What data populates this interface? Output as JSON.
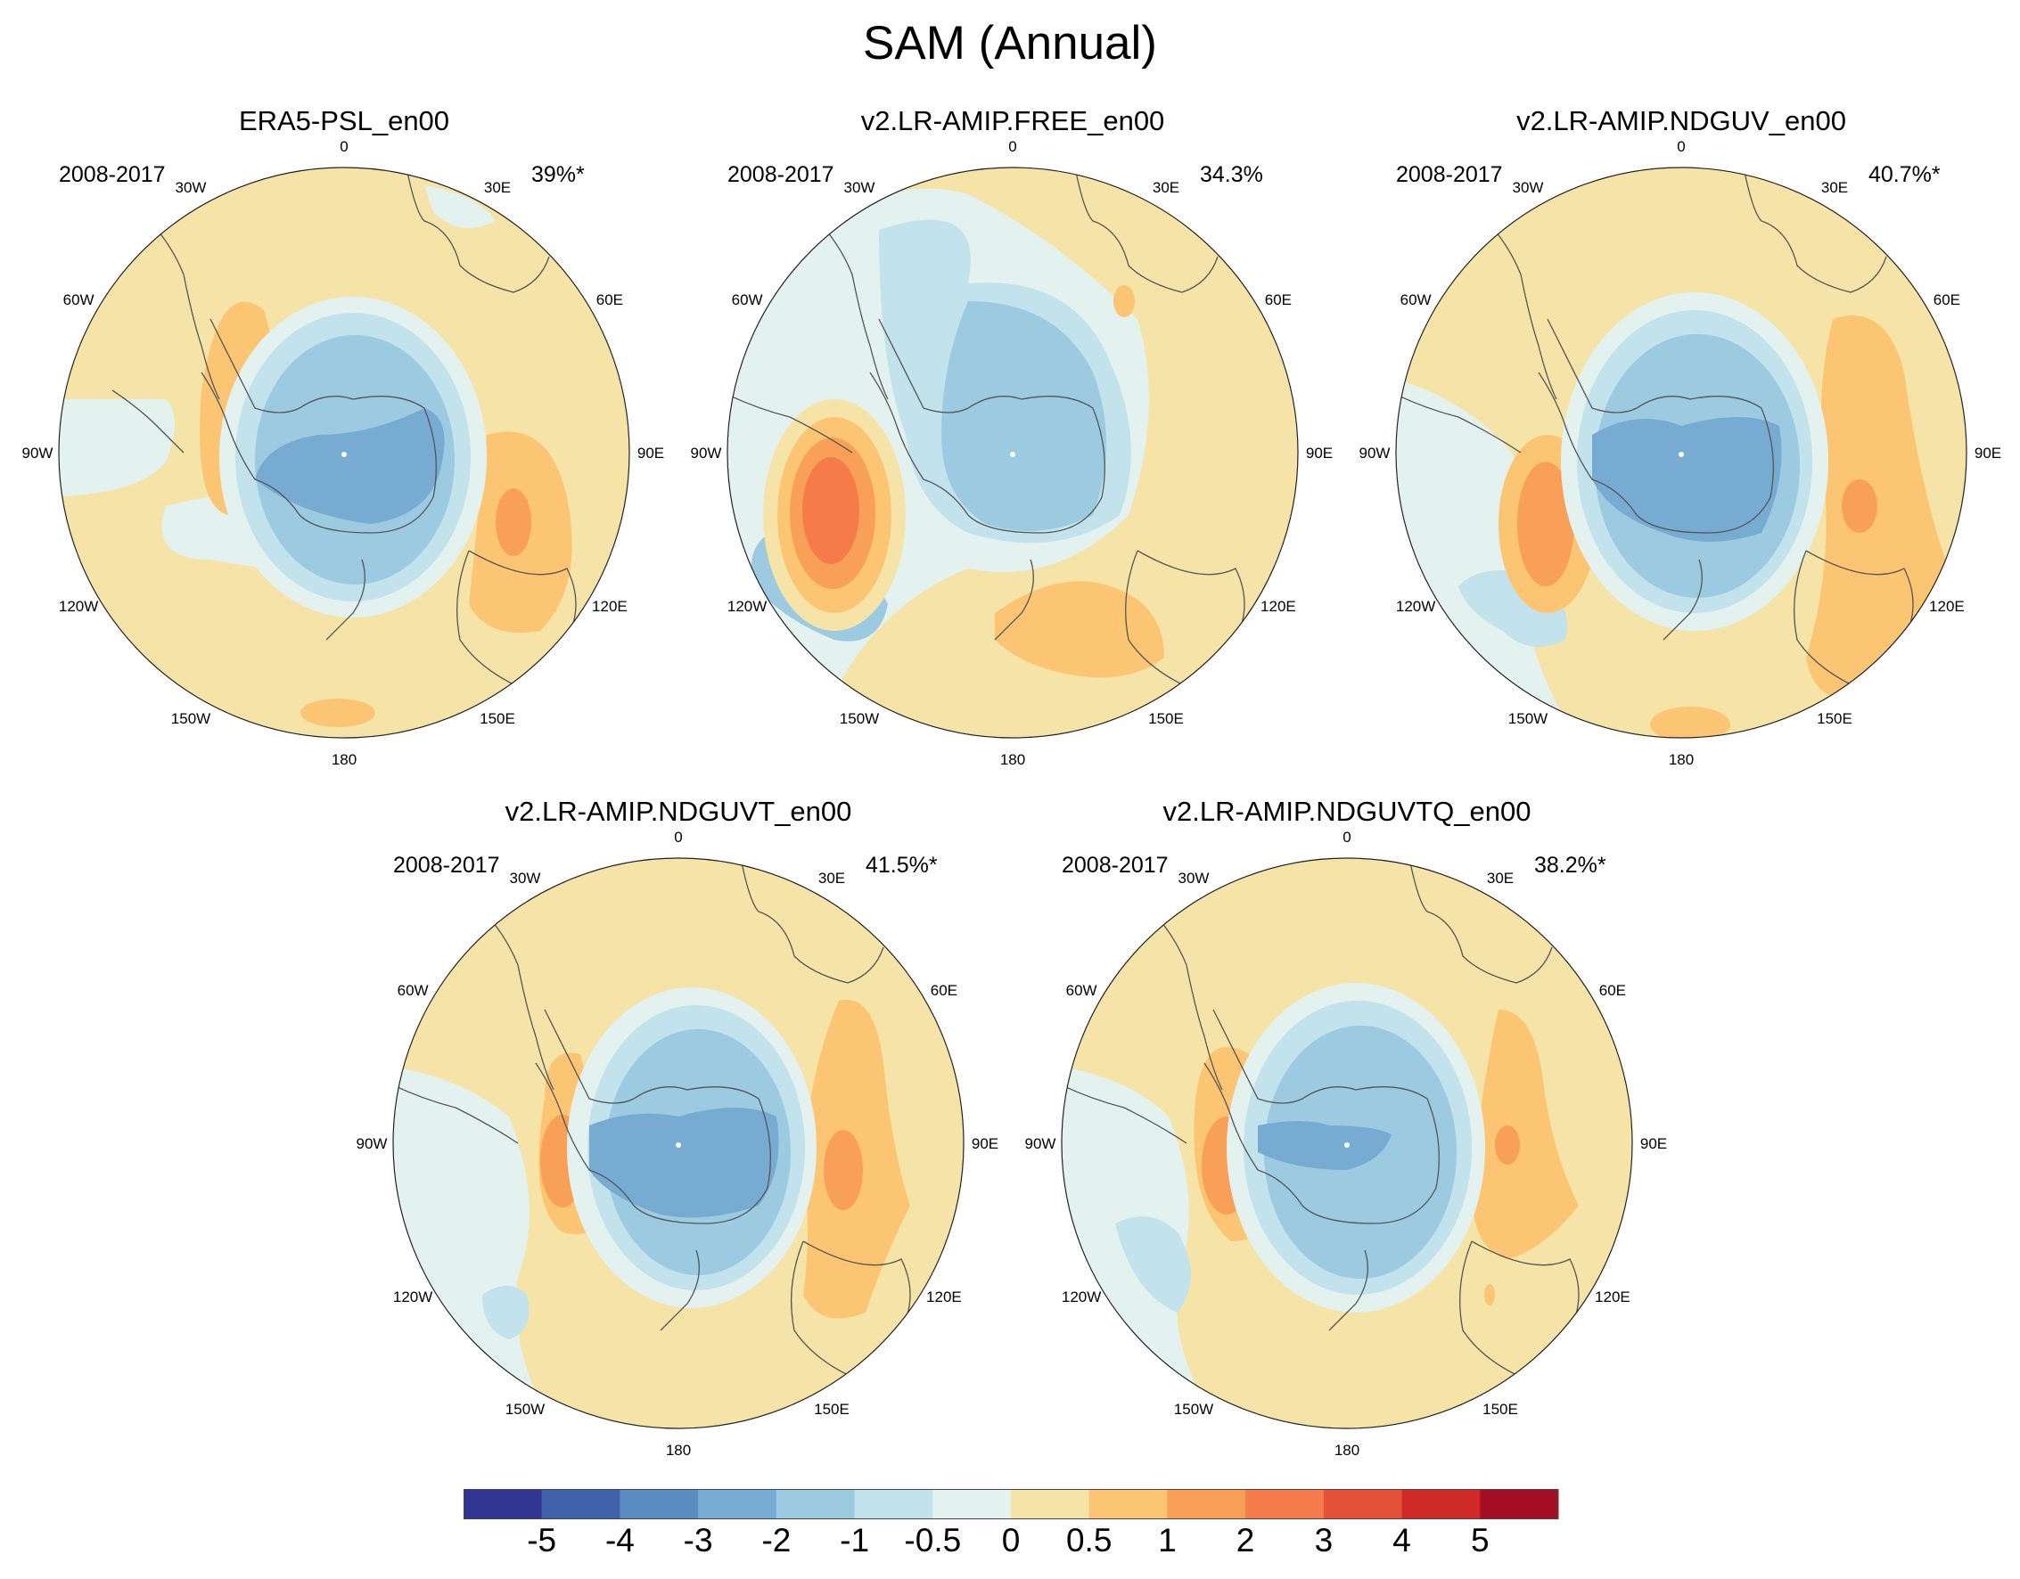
{
  "figure_title": "SAM (Annual)",
  "panels": [
    {
      "title": "ERA5-PSL_en00",
      "period": "2008-2017",
      "variance": "39%*"
    },
    {
      "title": "v2.LR-AMIP.FREE_en00",
      "period": "2008-2017",
      "variance": "34.3%"
    },
    {
      "title": "v2.LR-AMIP.NDGUV_en00",
      "period": "2008-2017",
      "variance": "40.7%*"
    },
    {
      "title": "v2.LR-AMIP.NDGUVT_en00",
      "period": "2008-2017",
      "variance": "41.5%*"
    },
    {
      "title": "v2.LR-AMIP.NDGUVTQ_en00",
      "period": "2008-2017",
      "variance": "38.2%*"
    }
  ],
  "longitude_labels": [
    "0",
    "30E",
    "60E",
    "90E",
    "120E",
    "150E",
    "180",
    "150W",
    "120W",
    "90W",
    "60W",
    "30W"
  ],
  "colorbar": {
    "labels": [
      "-5",
      "-4",
      "-3",
      "-2",
      "-1",
      "-0.5",
      "0",
      "0.5",
      "1",
      "2",
      "3",
      "4",
      "5"
    ],
    "colors": [
      "#313695",
      "#4161ab",
      "#5a8cc1",
      "#78abd2",
      "#9ccae0",
      "#c2e2ec",
      "#e3f1ef",
      "#f6e3a8",
      "#fcc574",
      "#f9a058",
      "#f57c4a",
      "#e55038",
      "#cf2a27",
      "#a50f26"
    ]
  },
  "chart_data": {
    "type": "polar-map",
    "projection": "south polar stereographic",
    "variable": "SAM (Annual)",
    "colorbar_levels": [
      -5,
      -4,
      -3,
      -2,
      -1,
      -0.5,
      0,
      0.5,
      1,
      2,
      3,
      4,
      5
    ],
    "panels": [
      {
        "name": "ERA5-PSL_en00",
        "variance_explained": 39,
        "significant": true
      },
      {
        "name": "v2.LR-AMIP.FREE_en00",
        "variance_explained": 34.3,
        "significant": false
      },
      {
        "name": "v2.LR-AMIP.NDGUV_en00",
        "variance_explained": 40.7,
        "significant": true
      },
      {
        "name": "v2.LR-AMIP.NDGUVT_en00",
        "variance_explained": 41.5,
        "significant": true
      },
      {
        "name": "v2.LR-AMIP.NDGUVTQ_en00",
        "variance_explained": 38.2,
        "significant": true
      }
    ]
  }
}
